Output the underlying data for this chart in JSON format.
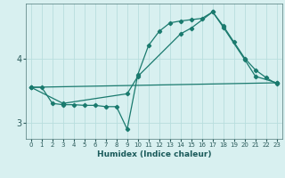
{
  "xlabel": "Humidex (Indice chaleur)",
  "bg_color": "#d8f0f0",
  "grid_color": "#b8dede",
  "line_color": "#1a7a6e",
  "xlim": [
    -0.5,
    23.5
  ],
  "ylim": [
    2.75,
    4.85
  ],
  "yticks": [
    3,
    4
  ],
  "xticks": [
    0,
    1,
    2,
    3,
    4,
    5,
    6,
    7,
    8,
    9,
    10,
    11,
    12,
    13,
    14,
    15,
    16,
    17,
    18,
    19,
    20,
    21,
    22,
    23
  ],
  "series": [
    {
      "comment": "line1: starts ~3.55, goes to ~3.3 at x=2, stays ~3.3-3.35 x=3-8, drops to ~2.9 x=9, rises sharply to ~3.75 x=10, ~4.2 x=11, ~4.42 x=12, ~4.55 x=13-14, ~4.6 x=15, peak ~4.72 x=17, ~4.5 x=18, ~4.25 x=19, ~4.0 x=20, ~3.85 x=21, ~3.72 x=22, ~3.62 x=23",
      "x": [
        0,
        1,
        2,
        3,
        4,
        5,
        6,
        7,
        8,
        9,
        10,
        11,
        12,
        13,
        14,
        15,
        16,
        17,
        18,
        19,
        20,
        21,
        22,
        23
      ],
      "y": [
        3.55,
        3.55,
        3.3,
        3.28,
        3.28,
        3.27,
        3.27,
        3.25,
        3.25,
        2.9,
        3.75,
        4.2,
        4.42,
        4.55,
        4.58,
        4.6,
        4.62,
        4.72,
        4.5,
        4.25,
        4.0,
        3.82,
        3.7,
        3.6
      ]
    },
    {
      "x": [
        0,
        23
      ],
      "y": [
        3.55,
        3.62
      ]
    },
    {
      "x": [
        0,
        3,
        9,
        10,
        14,
        15,
        17,
        18,
        20,
        21,
        23
      ],
      "y": [
        3.55,
        3.3,
        3.45,
        3.72,
        4.38,
        4.47,
        4.72,
        4.48,
        3.98,
        3.72,
        3.62
      ]
    }
  ]
}
